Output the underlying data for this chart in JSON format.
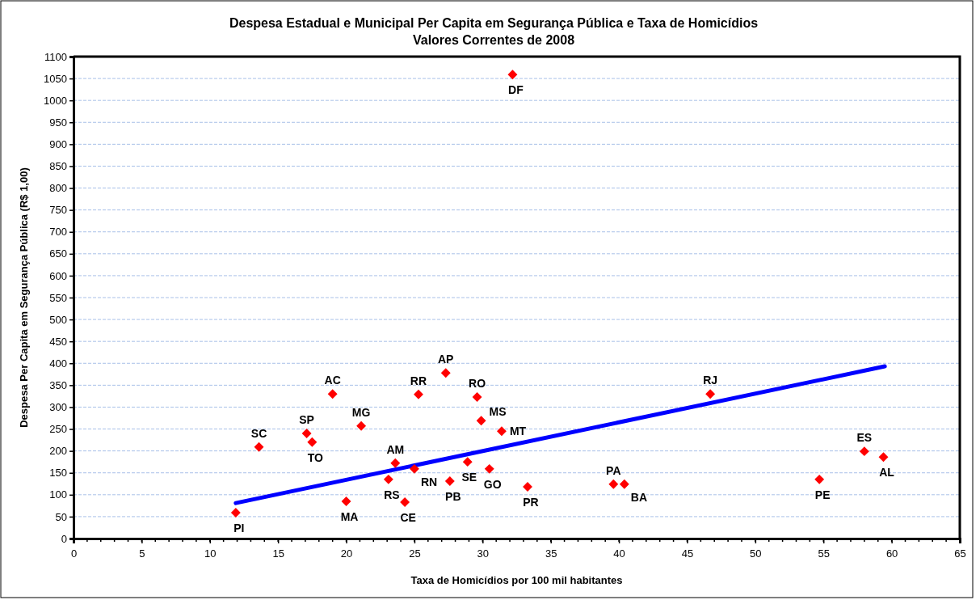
{
  "chart_data": {
    "type": "scatter",
    "title": "Despesa Estadual e Municipal Per Capita em Segurança Pública e Taxa de Homicídios",
    "subtitle": "Valores Correntes de 2008",
    "xlabel": "Taxa de Homicídios por 100 mil habitantes",
    "ylabel": "Despesa Per Capita em Segurança Pública (R$ 1,00)",
    "xlim": [
      0,
      65
    ],
    "xticks": [
      0,
      5,
      10,
      15,
      20,
      25,
      30,
      35,
      40,
      45,
      50,
      55,
      60,
      65
    ],
    "ylim": [
      0,
      1100
    ],
    "yticks": [
      0,
      50,
      100,
      150,
      200,
      250,
      300,
      350,
      400,
      450,
      500,
      550,
      600,
      650,
      700,
      750,
      800,
      850,
      900,
      950,
      1000,
      1050,
      1100
    ],
    "grid": "y",
    "series": [
      {
        "marker": "diamond",
        "color": "#ff0000",
        "x": [
          11.9,
          13.6,
          17.1,
          17.5,
          19.0,
          21.1,
          20.0,
          23.6,
          23.1,
          25.0,
          24.3,
          25.3,
          27.3,
          27.6,
          28.9,
          29.6,
          29.9,
          31.4,
          30.5,
          33.3,
          32.2,
          39.6,
          40.4,
          46.7,
          54.7,
          58.0,
          59.4
        ],
        "values": [
          59,
          209,
          240,
          220,
          330,
          257,
          85,
          172,
          135,
          159,
          83,
          329,
          378,
          131,
          175,
          323,
          269,
          245,
          159,
          118,
          1059,
          124,
          124,
          330,
          135,
          199,
          186
        ]
      },
      {
        "type": "line",
        "color": "#0000ff",
        "x": [
          11.9,
          59.5
        ],
        "values": [
          81,
          393
        ]
      }
    ],
    "annotations": [
      {
        "text": "PI",
        "x": 11.9,
        "y": 59
      },
      {
        "text": "SC",
        "x": 13.6,
        "y": 209
      },
      {
        "text": "SP",
        "x": 17.1,
        "y": 240
      },
      {
        "text": "TO",
        "x": 17.5,
        "y": 220
      },
      {
        "text": "AC",
        "x": 19.0,
        "y": 330
      },
      {
        "text": "MG",
        "x": 21.1,
        "y": 257
      },
      {
        "text": "MA",
        "x": 20.0,
        "y": 85
      },
      {
        "text": "AM",
        "x": 23.6,
        "y": 172
      },
      {
        "text": "RS",
        "x": 23.1,
        "y": 135
      },
      {
        "text": "RN",
        "x": 25.0,
        "y": 159
      },
      {
        "text": "CE",
        "x": 24.3,
        "y": 83
      },
      {
        "text": "RR",
        "x": 25.3,
        "y": 329
      },
      {
        "text": "AP",
        "x": 27.3,
        "y": 378
      },
      {
        "text": "PB",
        "x": 27.6,
        "y": 131
      },
      {
        "text": "SE",
        "x": 28.9,
        "y": 175
      },
      {
        "text": "RO",
        "x": 29.6,
        "y": 323
      },
      {
        "text": "MS",
        "x": 29.9,
        "y": 269
      },
      {
        "text": "MT",
        "x": 31.4,
        "y": 245
      },
      {
        "text": "GO",
        "x": 30.5,
        "y": 159
      },
      {
        "text": "PR",
        "x": 33.3,
        "y": 118
      },
      {
        "text": "DF",
        "x": 32.2,
        "y": 1059
      },
      {
        "text": "PA",
        "x": 39.6,
        "y": 124
      },
      {
        "text": "BA",
        "x": 40.4,
        "y": 124
      },
      {
        "text": "RJ",
        "x": 46.7,
        "y": 330
      },
      {
        "text": "PE",
        "x": 54.7,
        "y": 135
      },
      {
        "text": "ES",
        "x": 58.0,
        "y": 199
      },
      {
        "text": "AL",
        "x": 59.4,
        "y": 186
      }
    ]
  }
}
